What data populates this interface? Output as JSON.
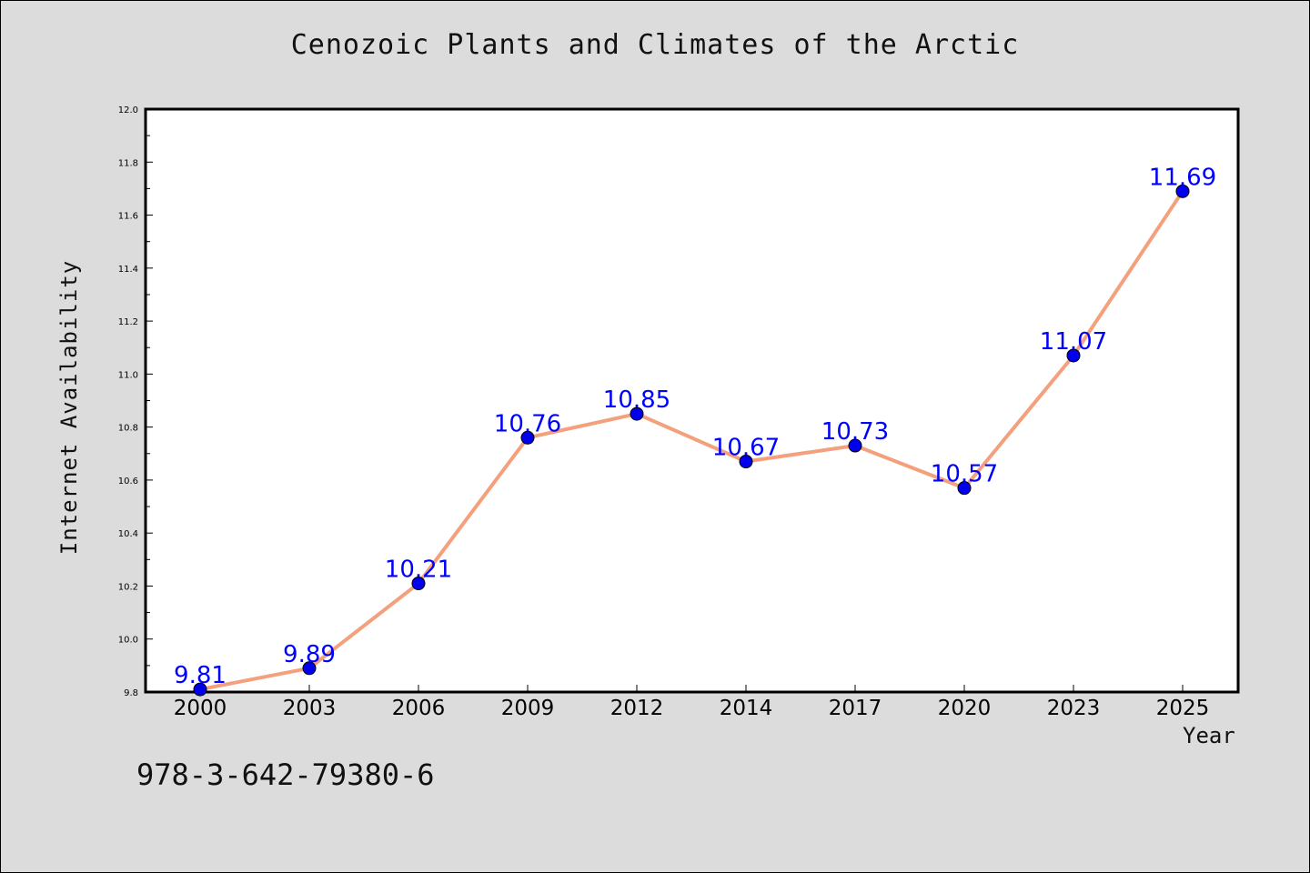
{
  "chart_data": {
    "type": "line",
    "title": "Cenozoic Plants and Climates of the Arctic",
    "xlabel": "Year",
    "ylabel": "Internet Availability",
    "categories": [
      "2000",
      "2003",
      "2006",
      "2009",
      "2012",
      "2014",
      "2017",
      "2020",
      "2023",
      "2025"
    ],
    "values": [
      9.81,
      9.89,
      10.21,
      10.76,
      10.85,
      10.67,
      10.73,
      10.57,
      11.07,
      11.69
    ],
    "data_labels": [
      "9.81",
      "9.89",
      "10.21",
      "10.76",
      "10.85",
      "10.67",
      "10.73",
      "10.57",
      "11.07",
      "11.69"
    ],
    "ylim": [
      9.8,
      12.0
    ],
    "yticks": [
      "9.8",
      "10.0",
      "10.2",
      "10.4",
      "10.6",
      "10.8",
      "11.0",
      "11.2",
      "11.4",
      "11.6",
      "11.8",
      "12.0"
    ],
    "grid": false,
    "legend": "none",
    "line_color": "#f4a07c",
    "marker_color": "#0000ee",
    "label_color": "#0000ff"
  },
  "footer_text": "978-3-642-79380-6"
}
